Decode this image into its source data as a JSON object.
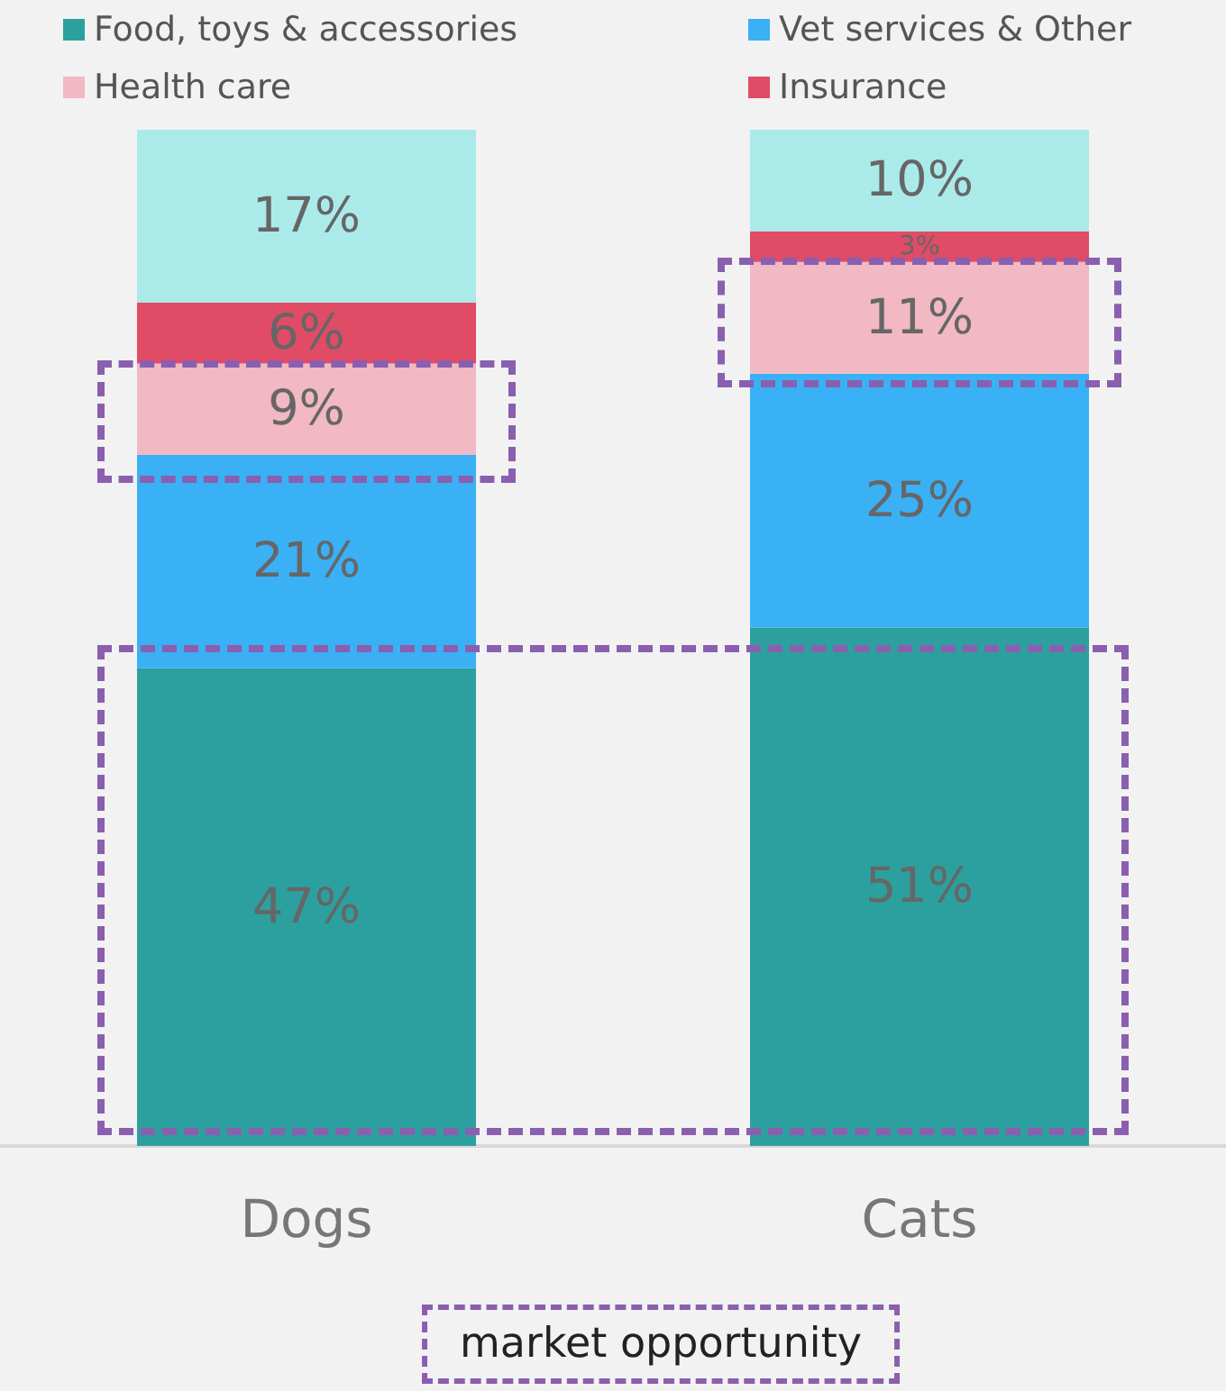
{
  "chart_data": {
    "type": "bar",
    "stacked": true,
    "categories": [
      "Dogs",
      "Cats"
    ],
    "legend": "top",
    "series": [
      {
        "name": "Food, toys & accessories",
        "color": "#2ca09e",
        "values": [
          47,
          51
        ],
        "value_labels": [
          "47%",
          "51%"
        ]
      },
      {
        "name": "Vet services & Other",
        "color": "#3ab0f5",
        "values": [
          21,
          25
        ],
        "value_labels": [
          "21%",
          "25%"
        ]
      },
      {
        "name": "Health care",
        "color": "#f2b8c3",
        "values": [
          9,
          11
        ],
        "value_labels": [
          "9%",
          "11%"
        ]
      },
      {
        "name": "Insurance",
        "color": "#e04c65",
        "values": [
          6,
          3
        ],
        "value_labels": [
          "6%",
          "3%"
        ]
      },
      {
        "color": "#aaebea",
        "values": [
          17,
          10
        ],
        "value_labels": [
          "17%",
          "10%"
        ]
      }
    ],
    "annotations": [
      "market opportunity"
    ]
  }
}
